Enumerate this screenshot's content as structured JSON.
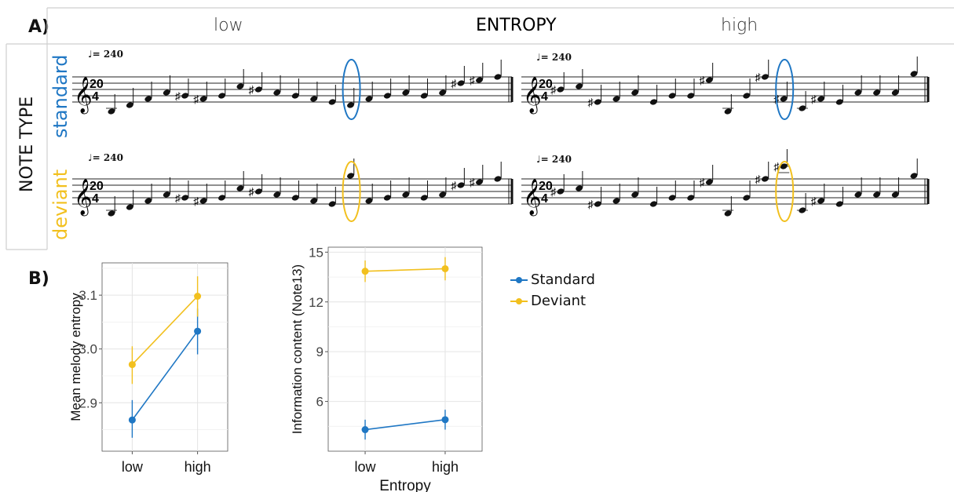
{
  "panel_a": {
    "label": "A)",
    "entropy_title": "ENTROPY",
    "entropy_low": "low",
    "entropy_high": "high",
    "note_type_title": "NOTE TYPE",
    "row_standard": "standard",
    "row_deviant": "deviant",
    "tempo": "= 240",
    "time_signature": "20/4",
    "colors": {
      "standard": "#1f77c4",
      "deviant": "#f2c01e"
    }
  },
  "panel_b": {
    "label": "B)"
  },
  "chart_data": [
    {
      "type": "line",
      "categories": [
        "low",
        "high"
      ],
      "ylabel": "Mean melody entropy",
      "xlabel": "",
      "ylim": [
        2.81,
        3.16
      ],
      "yticks": [
        2.9,
        3.0,
        3.1
      ],
      "grid": true,
      "series": [
        {
          "name": "Standard",
          "color": "#1f77c4",
          "values": [
            2.868,
            3.033
          ],
          "err_low": [
            2.835,
            2.99
          ],
          "err_high": [
            2.905,
            3.075
          ]
        },
        {
          "name": "Deviant",
          "color": "#f2c01e",
          "values": [
            2.971,
            3.098
          ],
          "err_low": [
            2.935,
            3.06
          ],
          "err_high": [
            3.005,
            3.135
          ]
        }
      ]
    },
    {
      "type": "line",
      "categories": [
        "low",
        "high"
      ],
      "ylabel": "Information content (Note13)",
      "xlabel": "Entropy",
      "ylim": [
        3.0,
        15.3
      ],
      "yticks": [
        6,
        9,
        12,
        15
      ],
      "grid": true,
      "series": [
        {
          "name": "Standard",
          "color": "#1f77c4",
          "values": [
            4.3,
            4.9
          ],
          "err_low": [
            3.7,
            4.3
          ],
          "err_high": [
            4.9,
            5.5
          ]
        },
        {
          "name": "Deviant",
          "color": "#f2c01e",
          "values": [
            13.85,
            14.0
          ],
          "err_low": [
            13.2,
            13.3
          ],
          "err_high": [
            14.5,
            14.7
          ]
        }
      ]
    }
  ],
  "legend": {
    "placement": "right",
    "entries": [
      {
        "label": "Standard",
        "color": "#1f77c4"
      },
      {
        "label": "Deviant",
        "color": "#f2c01e"
      }
    ]
  }
}
